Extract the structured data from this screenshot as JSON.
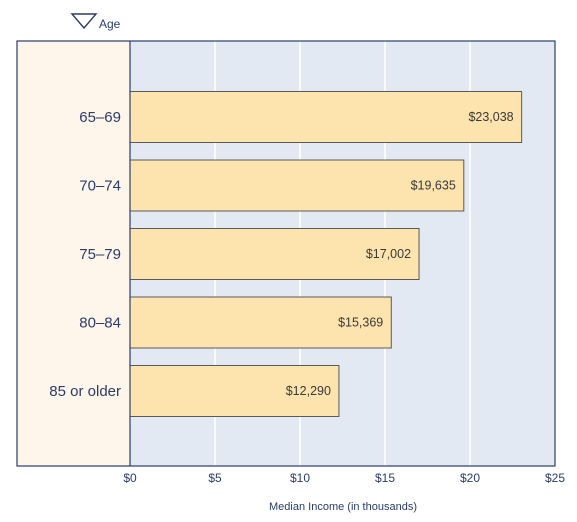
{
  "chart_data": {
    "type": "bar",
    "orientation": "horizontal",
    "legend_label": "Age",
    "xlabel": "Median Income (in thousands)",
    "categories": [
      "65–69",
      "70–74",
      "75–79",
      "80–84",
      "85 or older"
    ],
    "values": [
      23.038,
      19.635,
      17.002,
      15.369,
      12.29
    ],
    "value_labels": [
      "$23,038",
      "$19,635",
      "$17,002",
      "$15,369",
      "$12,290"
    ],
    "xlim": [
      0,
      25
    ],
    "x_ticks": [
      0,
      5,
      10,
      15,
      20,
      25
    ],
    "x_tick_labels": [
      "$0",
      "$5",
      "$10",
      "$15",
      "$20",
      "$25"
    ],
    "grid": true,
    "colors": {
      "bar_fill": "#fde3ae",
      "bar_stroke": "#5a5a5a",
      "plot_bg": "#e2e9f2",
      "label_bg": "#fef6ea",
      "gridline": "#ffffff",
      "frame": "#2b3c6b",
      "text": "#2b3c6b"
    }
  }
}
